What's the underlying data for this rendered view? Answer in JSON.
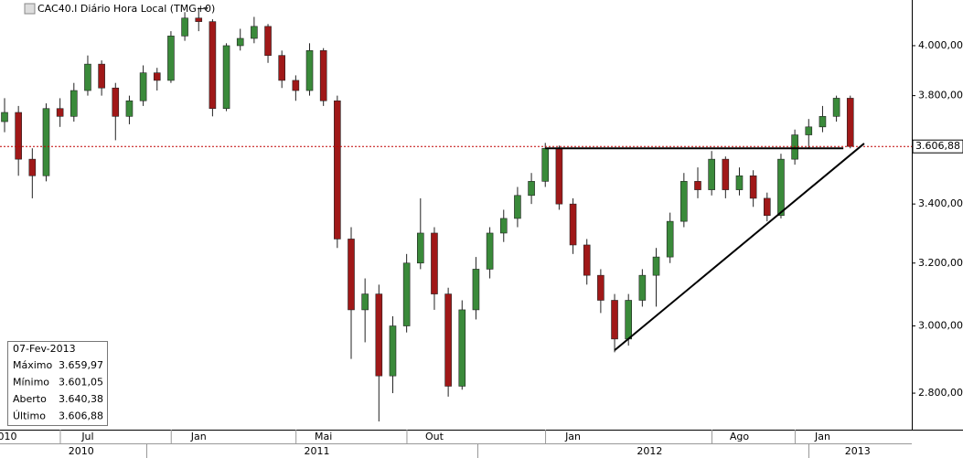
{
  "chart_data": {
    "type": "candlestick",
    "title": "CAC40.I Diário Hora Local (TMG+0)",
    "categories": [
      "010",
      null,
      null,
      null,
      null,
      null,
      "Jul",
      null,
      null,
      null,
      null,
      null,
      null,
      null,
      "Jan",
      null,
      null,
      null,
      null,
      null,
      null,
      null,
      null,
      "Mai",
      null,
      null,
      null,
      null,
      null,
      null,
      null,
      "Out",
      null,
      null,
      null,
      null,
      null,
      null,
      null,
      null,
      null,
      "Jan",
      null,
      null,
      null,
      null,
      null,
      null,
      null,
      null,
      null,
      null,
      null,
      "Ago",
      null,
      null,
      null,
      null,
      null,
      "Jan",
      null,
      null
    ],
    "year_categories": [
      null,
      null,
      null,
      null,
      null,
      "2010",
      null,
      null,
      null,
      null,
      null,
      null,
      null,
      null,
      null,
      null,
      null,
      null,
      null,
      null,
      null,
      null,
      "2011",
      null,
      null,
      null,
      null,
      null,
      null,
      null,
      null,
      null,
      null,
      null,
      null,
      null,
      null,
      null,
      null,
      null,
      null,
      null,
      null,
      null,
      null,
      null,
      "2012",
      null,
      null,
      null,
      null,
      null,
      null,
      null,
      null,
      null,
      null,
      null,
      null,
      null,
      null,
      "2013"
    ],
    "open": [
      3700,
      3735,
      3560,
      3500,
      3750,
      3720,
      3820,
      3925,
      3830,
      3720,
      3780,
      3890,
      3860,
      4040,
      4115,
      4100,
      3750,
      4000,
      4030,
      4080,
      3960,
      3860,
      3820,
      3980,
      3780,
      3280,
      3050,
      3100,
      2850,
      3000,
      3200,
      3300,
      3100,
      2820,
      3050,
      3180,
      3300,
      3350,
      3430,
      3480,
      3600,
      3400,
      3260,
      3160,
      3080,
      2960,
      3080,
      3160,
      3220,
      3340,
      3480,
      3450,
      3560,
      3450,
      3500,
      3420,
      3360,
      3560,
      3650,
      3680,
      3720,
      3790
    ],
    "high": [
      3790,
      3760,
      3600,
      3770,
      3790,
      3850,
      3960,
      3940,
      3850,
      3800,
      3920,
      3910,
      4060,
      4140,
      4160,
      4110,
      4010,
      4070,
      4120,
      4090,
      3980,
      3880,
      4010,
      3990,
      3800,
      3320,
      3150,
      3130,
      3030,
      3230,
      3420,
      3320,
      3120,
      3080,
      3220,
      3320,
      3380,
      3460,
      3510,
      3620,
      3610,
      3420,
      3280,
      3180,
      3100,
      3100,
      3180,
      3250,
      3370,
      3510,
      3530,
      3590,
      3570,
      3530,
      3520,
      3440,
      3580,
      3670,
      3710,
      3760,
      3800,
      3800
    ],
    "low": [
      3660,
      3500,
      3420,
      3480,
      3680,
      3700,
      3800,
      3800,
      3630,
      3690,
      3760,
      3820,
      3850,
      4020,
      4060,
      3720,
      3740,
      3980,
      4010,
      3930,
      3830,
      3780,
      3800,
      3760,
      3250,
      2900,
      2950,
      2720,
      2800,
      2980,
      3180,
      3050,
      2790,
      2810,
      3020,
      3150,
      3270,
      3320,
      3400,
      3460,
      3380,
      3230,
      3130,
      3040,
      2920,
      2940,
      3060,
      3060,
      3200,
      3320,
      3420,
      3430,
      3420,
      3430,
      3390,
      3340,
      3350,
      3540,
      3600,
      3660,
      3700,
      3600
    ],
    "close": [
      3735,
      3560,
      3500,
      3750,
      3720,
      3820,
      3925,
      3830,
      3720,
      3780,
      3890,
      3860,
      4040,
      4115,
      4100,
      3750,
      4000,
      4030,
      4080,
      3960,
      3860,
      3820,
      3980,
      3780,
      3280,
      3050,
      3100,
      2850,
      3000,
      3200,
      3300,
      3100,
      2820,
      3050,
      3180,
      3300,
      3350,
      3430,
      3480,
      3600,
      3400,
      3260,
      3160,
      3080,
      2960,
      3080,
      3160,
      3220,
      3340,
      3480,
      3450,
      3560,
      3450,
      3500,
      3420,
      3360,
      3560,
      3650,
      3680,
      3720,
      3790,
      3607
    ],
    "up_color": "#3a8a3a",
    "down_color": "#a01818",
    "ylim": [
      2697,
      4192
    ],
    "log_scale": true,
    "yticks": [
      {
        "value": 2800,
        "label": "2.800,00"
      },
      {
        "value": 3000,
        "label": "3.000,00"
      },
      {
        "value": 3200,
        "label": "3.200,00"
      },
      {
        "value": 3400,
        "label": "3.400,00"
      },
      {
        "value": 3600,
        "label": "3.600,00"
      },
      {
        "value": 3800,
        "label": "3.800,00"
      },
      {
        "value": 4000,
        "label": "4.000,00"
      }
    ],
    "last_value": {
      "value": 3606.88,
      "label": "3.606,88"
    },
    "last_line_color": "#c00000",
    "trendlines": [
      {
        "x": [
          39,
          60.5
        ],
        "y": [
          3600,
          3600
        ]
      },
      {
        "x": [
          44,
          62
        ],
        "y": [
          2926,
          3618
        ]
      }
    ],
    "info_box": {
      "date": "07-Fev-2013",
      "rows": [
        {
          "label": "Máximo",
          "value": "3.659,97"
        },
        {
          "label": "Mínimo",
          "value": "3.601,05"
        },
        {
          "label": "Aberto",
          "value": "3.640,38"
        },
        {
          "label": "Último",
          "value": "3.606,88"
        }
      ]
    }
  }
}
